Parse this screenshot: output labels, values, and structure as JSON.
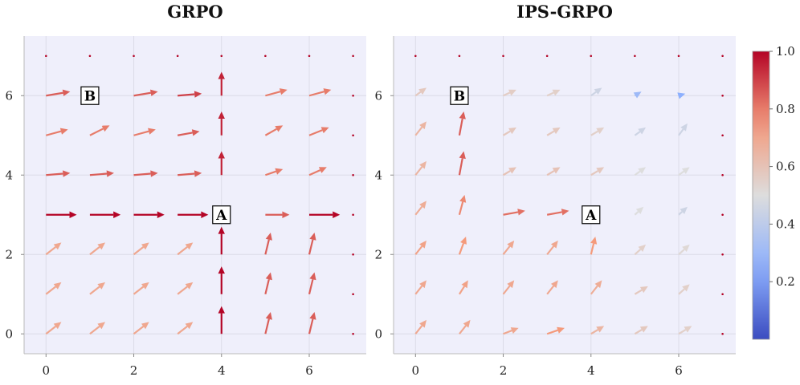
{
  "chart_data": [
    {
      "type": "quiver",
      "title": "GRPO",
      "xlim": [
        -0.5,
        7.3
      ],
      "ylim": [
        -0.5,
        7.5
      ],
      "xticks": [
        "0",
        "2",
        "4",
        "6"
      ],
      "yticks": [
        "0",
        "2",
        "4",
        "6"
      ],
      "grid": true,
      "annotations": [
        {
          "text": "A",
          "x": 4,
          "y": 3
        },
        {
          "text": "B",
          "x": 1,
          "y": 6
        }
      ],
      "vectors": [
        {
          "x": 0,
          "y": 0,
          "dx": 0.35,
          "dy": 0.3,
          "v": 0.7
        },
        {
          "x": 1,
          "y": 0,
          "dx": 0.35,
          "dy": 0.3,
          "v": 0.7
        },
        {
          "x": 2,
          "y": 0,
          "dx": 0.35,
          "dy": 0.3,
          "v": 0.7
        },
        {
          "x": 3,
          "y": 0,
          "dx": 0.35,
          "dy": 0.3,
          "v": 0.7
        },
        {
          "x": 4,
          "y": 0,
          "dx": 0,
          "dy": 0.7,
          "v": 1.0
        },
        {
          "x": 5,
          "y": 0,
          "dx": 0.12,
          "dy": 0.55,
          "v": 0.85
        },
        {
          "x": 6,
          "y": 0,
          "dx": 0.12,
          "dy": 0.55,
          "v": 0.85
        },
        {
          "x": 7,
          "y": 0,
          "dx": 0,
          "dy": 0,
          "v": 1.0
        },
        {
          "x": 0,
          "y": 1,
          "dx": 0.35,
          "dy": 0.3,
          "v": 0.7
        },
        {
          "x": 1,
          "y": 1,
          "dx": 0.35,
          "dy": 0.3,
          "v": 0.7
        },
        {
          "x": 2,
          "y": 1,
          "dx": 0.35,
          "dy": 0.3,
          "v": 0.7
        },
        {
          "x": 3,
          "y": 1,
          "dx": 0.35,
          "dy": 0.3,
          "v": 0.7
        },
        {
          "x": 4,
          "y": 1,
          "dx": 0,
          "dy": 0.7,
          "v": 1.0
        },
        {
          "x": 5,
          "y": 1,
          "dx": 0.12,
          "dy": 0.55,
          "v": 0.85
        },
        {
          "x": 6,
          "y": 1,
          "dx": 0.12,
          "dy": 0.55,
          "v": 0.85
        },
        {
          "x": 7,
          "y": 1,
          "dx": 0,
          "dy": 0,
          "v": 1.0
        },
        {
          "x": 0,
          "y": 2,
          "dx": 0.35,
          "dy": 0.3,
          "v": 0.7
        },
        {
          "x": 1,
          "y": 2,
          "dx": 0.35,
          "dy": 0.3,
          "v": 0.7
        },
        {
          "x": 2,
          "y": 2,
          "dx": 0.35,
          "dy": 0.3,
          "v": 0.7
        },
        {
          "x": 3,
          "y": 2,
          "dx": 0.35,
          "dy": 0.3,
          "v": 0.7
        },
        {
          "x": 4,
          "y": 2,
          "dx": 0,
          "dy": 0.7,
          "v": 1.0
        },
        {
          "x": 5,
          "y": 2,
          "dx": 0.12,
          "dy": 0.55,
          "v": 0.85
        },
        {
          "x": 6,
          "y": 2,
          "dx": 0.12,
          "dy": 0.55,
          "v": 0.85
        },
        {
          "x": 7,
          "y": 2,
          "dx": 0,
          "dy": 0,
          "v": 1.0
        },
        {
          "x": 0,
          "y": 3,
          "dx": 0.7,
          "dy": 0,
          "v": 1.0
        },
        {
          "x": 1,
          "y": 3,
          "dx": 0.7,
          "dy": 0,
          "v": 1.0
        },
        {
          "x": 2,
          "y": 3,
          "dx": 0.7,
          "dy": 0,
          "v": 1.0
        },
        {
          "x": 3,
          "y": 3,
          "dx": 0.7,
          "dy": 0,
          "v": 1.0
        },
        {
          "x": 5,
          "y": 3,
          "dx": 0.55,
          "dy": 0,
          "v": 0.85
        },
        {
          "x": 6,
          "y": 3,
          "dx": 0.7,
          "dy": 0,
          "v": 1.0
        },
        {
          "x": 7,
          "y": 3,
          "dx": 0,
          "dy": 0,
          "v": 1.0
        },
        {
          "x": 0,
          "y": 4,
          "dx": 0.55,
          "dy": 0.05,
          "v": 0.85
        },
        {
          "x": 1,
          "y": 4,
          "dx": 0.55,
          "dy": 0.05,
          "v": 0.85
        },
        {
          "x": 2,
          "y": 4,
          "dx": 0.55,
          "dy": 0.05,
          "v": 0.85
        },
        {
          "x": 3,
          "y": 4,
          "dx": 0.55,
          "dy": 0.05,
          "v": 0.85
        },
        {
          "x": 4,
          "y": 4,
          "dx": 0,
          "dy": 0.6,
          "v": 0.95
        },
        {
          "x": 5,
          "y": 4,
          "dx": 0.4,
          "dy": 0.15,
          "v": 0.8
        },
        {
          "x": 6,
          "y": 4,
          "dx": 0.4,
          "dy": 0.2,
          "v": 0.8
        },
        {
          "x": 7,
          "y": 4,
          "dx": 0,
          "dy": 0,
          "v": 1.0
        },
        {
          "x": 0,
          "y": 5,
          "dx": 0.5,
          "dy": 0.15,
          "v": 0.8
        },
        {
          "x": 1,
          "y": 5,
          "dx": 0.45,
          "dy": 0.25,
          "v": 0.8
        },
        {
          "x": 2,
          "y": 5,
          "dx": 0.5,
          "dy": 0.15,
          "v": 0.8
        },
        {
          "x": 3,
          "y": 5,
          "dx": 0.5,
          "dy": 0.1,
          "v": 0.85
        },
        {
          "x": 4,
          "y": 5,
          "dx": 0,
          "dy": 0.6,
          "v": 0.95
        },
        {
          "x": 5,
          "y": 5,
          "dx": 0.4,
          "dy": 0.25,
          "v": 0.8
        },
        {
          "x": 6,
          "y": 5,
          "dx": 0.45,
          "dy": 0.2,
          "v": 0.8
        },
        {
          "x": 7,
          "y": 5,
          "dx": 0,
          "dy": 0,
          "v": 1.0
        },
        {
          "x": 0,
          "y": 6,
          "dx": 0.55,
          "dy": 0.1,
          "v": 0.85
        },
        {
          "x": 2,
          "y": 6,
          "dx": 0.55,
          "dy": 0.1,
          "v": 0.85
        },
        {
          "x": 3,
          "y": 6,
          "dx": 0.55,
          "dy": 0.05,
          "v": 0.9
        },
        {
          "x": 4,
          "y": 6,
          "dx": 0,
          "dy": 0.6,
          "v": 0.95
        },
        {
          "x": 5,
          "y": 6,
          "dx": 0.5,
          "dy": 0.15,
          "v": 0.8
        },
        {
          "x": 6,
          "y": 6,
          "dx": 0.5,
          "dy": 0.15,
          "v": 0.8
        },
        {
          "x": 7,
          "y": 6,
          "dx": 0,
          "dy": 0,
          "v": 1.0
        },
        {
          "x": 0,
          "y": 7,
          "dx": 0,
          "dy": 0,
          "v": 1.0
        },
        {
          "x": 1,
          "y": 7,
          "dx": 0,
          "dy": 0,
          "v": 1.0
        },
        {
          "x": 2,
          "y": 7,
          "dx": 0,
          "dy": 0,
          "v": 1.0
        },
        {
          "x": 3,
          "y": 7,
          "dx": 0,
          "dy": 0,
          "v": 1.0
        },
        {
          "x": 4,
          "y": 7,
          "dx": 0,
          "dy": 0,
          "v": 1.0
        },
        {
          "x": 5,
          "y": 7,
          "dx": 0,
          "dy": 0,
          "v": 1.0
        },
        {
          "x": 6,
          "y": 7,
          "dx": 0,
          "dy": 0,
          "v": 1.0
        },
        {
          "x": 7,
          "y": 7,
          "dx": 0,
          "dy": 0,
          "v": 1.0
        }
      ]
    },
    {
      "type": "quiver",
      "title": "IPS-GRPO",
      "xlim": [
        -0.5,
        7.3
      ],
      "ylim": [
        -0.5,
        7.5
      ],
      "xticks": [
        "0",
        "2",
        "4",
        "6"
      ],
      "yticks": [
        "0",
        "2",
        "4",
        "6"
      ],
      "grid": true,
      "annotations": [
        {
          "text": "A",
          "x": 4,
          "y": 3
        },
        {
          "text": "B",
          "x": 1,
          "y": 6
        }
      ],
      "vectors": [
        {
          "x": 0,
          "y": 0,
          "dx": 0.25,
          "dy": 0.35,
          "v": 0.7
        },
        {
          "x": 1,
          "y": 0,
          "dx": 0.25,
          "dy": 0.35,
          "v": 0.7
        },
        {
          "x": 2,
          "y": 0,
          "dx": 0.35,
          "dy": 0.15,
          "v": 0.7
        },
        {
          "x": 3,
          "y": 0,
          "dx": 0.4,
          "dy": 0.15,
          "v": 0.75
        },
        {
          "x": 4,
          "y": 0,
          "dx": 0.3,
          "dy": 0.2,
          "v": 0.65
        },
        {
          "x": 5,
          "y": 0,
          "dx": 0.3,
          "dy": 0.2,
          "v": 0.58
        },
        {
          "x": 6,
          "y": 0,
          "dx": 0.3,
          "dy": 0.2,
          "v": 0.55
        },
        {
          "x": 7,
          "y": 0,
          "dx": 0,
          "dy": 0,
          "v": 1.0
        },
        {
          "x": 0,
          "y": 1,
          "dx": 0.25,
          "dy": 0.35,
          "v": 0.7
        },
        {
          "x": 1,
          "y": 1,
          "dx": 0.2,
          "dy": 0.35,
          "v": 0.72
        },
        {
          "x": 2,
          "y": 1,
          "dx": 0.25,
          "dy": 0.35,
          "v": 0.7
        },
        {
          "x": 3,
          "y": 1,
          "dx": 0.25,
          "dy": 0.35,
          "v": 0.7
        },
        {
          "x": 4,
          "y": 1,
          "dx": 0.25,
          "dy": 0.35,
          "v": 0.68
        },
        {
          "x": 5,
          "y": 1,
          "dx": 0.3,
          "dy": 0.2,
          "v": 0.58
        },
        {
          "x": 6,
          "y": 1,
          "dx": 0.25,
          "dy": 0.25,
          "v": 0.55
        },
        {
          "x": 7,
          "y": 1,
          "dx": 0,
          "dy": 0,
          "v": 1.0
        },
        {
          "x": 0,
          "y": 2,
          "dx": 0.25,
          "dy": 0.35,
          "v": 0.72
        },
        {
          "x": 1,
          "y": 2,
          "dx": 0.15,
          "dy": 0.45,
          "v": 0.75
        },
        {
          "x": 2,
          "y": 2,
          "dx": 0.25,
          "dy": 0.35,
          "v": 0.7
        },
        {
          "x": 3,
          "y": 2,
          "dx": 0.25,
          "dy": 0.35,
          "v": 0.7
        },
        {
          "x": 4,
          "y": 2,
          "dx": 0.1,
          "dy": 0.45,
          "v": 0.75
        },
        {
          "x": 5,
          "y": 2,
          "dx": 0.25,
          "dy": 0.25,
          "v": 0.55
        },
        {
          "x": 6,
          "y": 2,
          "dx": 0.25,
          "dy": 0.25,
          "v": 0.52
        },
        {
          "x": 7,
          "y": 2,
          "dx": 0,
          "dy": 0,
          "v": 1.0
        },
        {
          "x": 0,
          "y": 3,
          "dx": 0.25,
          "dy": 0.35,
          "v": 0.68
        },
        {
          "x": 1,
          "y": 3,
          "dx": 0.12,
          "dy": 0.5,
          "v": 0.78
        },
        {
          "x": 2,
          "y": 3,
          "dx": 0.5,
          "dy": 0.1,
          "v": 0.82
        },
        {
          "x": 3,
          "y": 3,
          "dx": 0.5,
          "dy": 0.1,
          "v": 0.82
        },
        {
          "x": 5,
          "y": 3,
          "dx": 0.2,
          "dy": 0.2,
          "v": 0.5
        },
        {
          "x": 6,
          "y": 3,
          "dx": 0.2,
          "dy": 0.2,
          "v": 0.45
        },
        {
          "x": 7,
          "y": 3,
          "dx": 0,
          "dy": 0,
          "v": 1.0
        },
        {
          "x": 0,
          "y": 4,
          "dx": 0.25,
          "dy": 0.35,
          "v": 0.65
        },
        {
          "x": 1,
          "y": 4,
          "dx": 0.1,
          "dy": 0.6,
          "v": 0.85
        },
        {
          "x": 2,
          "y": 4,
          "dx": 0.3,
          "dy": 0.2,
          "v": 0.6
        },
        {
          "x": 3,
          "y": 4,
          "dx": 0.3,
          "dy": 0.2,
          "v": 0.6
        },
        {
          "x": 4,
          "y": 4,
          "dx": 0.3,
          "dy": 0.2,
          "v": 0.58
        },
        {
          "x": 5,
          "y": 4,
          "dx": 0.25,
          "dy": 0.2,
          "v": 0.5
        },
        {
          "x": 6,
          "y": 4,
          "dx": 0.25,
          "dy": 0.2,
          "v": 0.5
        },
        {
          "x": 7,
          "y": 4,
          "dx": 0,
          "dy": 0,
          "v": 1.0
        },
        {
          "x": 0,
          "y": 5,
          "dx": 0.25,
          "dy": 0.35,
          "v": 0.65
        },
        {
          "x": 1,
          "y": 5,
          "dx": 0.1,
          "dy": 0.6,
          "v": 0.85
        },
        {
          "x": 2,
          "y": 5,
          "dx": 0.3,
          "dy": 0.2,
          "v": 0.58
        },
        {
          "x": 3,
          "y": 5,
          "dx": 0.3,
          "dy": 0.2,
          "v": 0.58
        },
        {
          "x": 4,
          "y": 5,
          "dx": 0.3,
          "dy": 0.2,
          "v": 0.55
        },
        {
          "x": 5,
          "y": 5,
          "dx": 0.25,
          "dy": 0.2,
          "v": 0.45
        },
        {
          "x": 6,
          "y": 5,
          "dx": 0.2,
          "dy": 0.3,
          "v": 0.45
        },
        {
          "x": 7,
          "y": 5,
          "dx": 0,
          "dy": 0,
          "v": 1.0
        },
        {
          "x": 0,
          "y": 6,
          "dx": 0.25,
          "dy": 0.2,
          "v": 0.58
        },
        {
          "x": 2,
          "y": 6,
          "dx": 0.3,
          "dy": 0.15,
          "v": 0.56
        },
        {
          "x": 3,
          "y": 6,
          "dx": 0.3,
          "dy": 0.15,
          "v": 0.55
        },
        {
          "x": 4,
          "y": 6,
          "dx": 0.25,
          "dy": 0.2,
          "v": 0.45
        },
        {
          "x": 5,
          "y": 6,
          "dx": 0.15,
          "dy": 0.1,
          "v": 0.3
        },
        {
          "x": 6,
          "y": 6,
          "dx": 0.15,
          "dy": 0.05,
          "v": 0.25
        },
        {
          "x": 7,
          "y": 6,
          "dx": 0,
          "dy": 0,
          "v": 1.0
        },
        {
          "x": 0,
          "y": 7,
          "dx": 0,
          "dy": 0,
          "v": 1.0
        },
        {
          "x": 1,
          "y": 7,
          "dx": 0,
          "dy": 0,
          "v": 1.0
        },
        {
          "x": 2,
          "y": 7,
          "dx": 0,
          "dy": 0,
          "v": 1.0
        },
        {
          "x": 3,
          "y": 7,
          "dx": 0,
          "dy": 0,
          "v": 1.0
        },
        {
          "x": 4,
          "y": 7,
          "dx": 0,
          "dy": 0,
          "v": 1.0
        },
        {
          "x": 5,
          "y": 7,
          "dx": 0,
          "dy": 0,
          "v": 1.0
        },
        {
          "x": 6,
          "y": 7,
          "dx": 0,
          "dy": 0,
          "v": 1.0
        },
        {
          "x": 7,
          "y": 7,
          "dx": 0,
          "dy": 0,
          "v": 1.0
        }
      ]
    }
  ],
  "colorbar": {
    "colormap": "coolwarm",
    "range": [
      0,
      1.0
    ],
    "ticks": [
      {
        "value": 0.2,
        "label": "0.2"
      },
      {
        "value": 0.4,
        "label": "0.4"
      },
      {
        "value": 0.6,
        "label": "0.6"
      },
      {
        "value": 0.8,
        "label": "0.8"
      },
      {
        "value": 1.0,
        "label": "1.0"
      }
    ]
  },
  "colors": {
    "plot_background": "#efeffb",
    "grid": "#dcdce8",
    "axis": "#bbbbbb"
  }
}
